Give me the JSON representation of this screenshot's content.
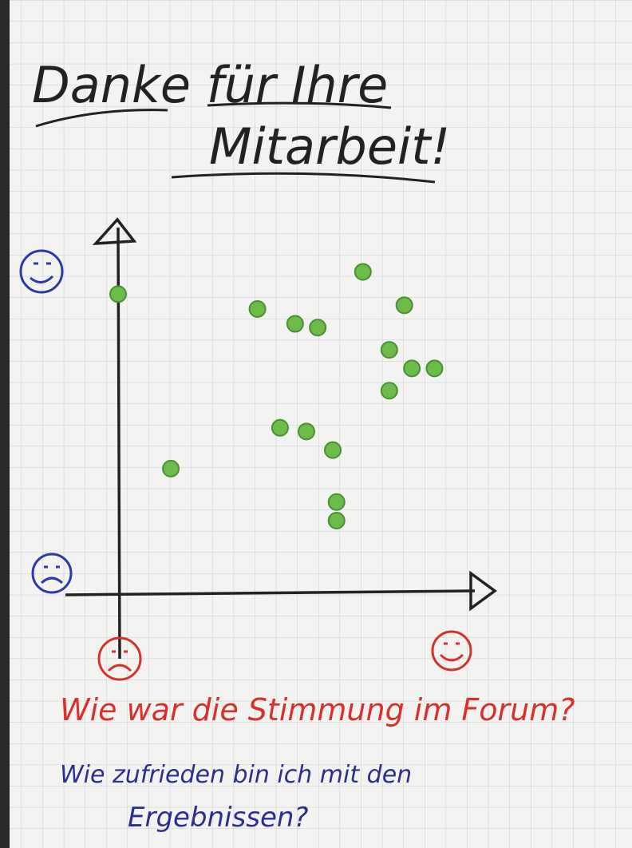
{
  "chart_data": {
    "type": "scatter",
    "title_lines": [
      "Danke für Ihre",
      "Mitarbeit!"
    ],
    "annotations": [
      "Wie war die Stimmung im Forum?",
      "Wie zufrieden bin ich mit den",
      "Ergebnissen?"
    ],
    "annotation_colors": [
      "#d9302c",
      "#2b2f8f",
      "#2b2f8f"
    ],
    "series": [
      {
        "color": "#6dbb4a",
        "x": [
          0.0,
          1.4,
          3.7,
          4.7,
          5.3,
          4.3,
          5.0,
          5.7,
          5.8,
          5.8,
          6.5,
          7.6,
          7.2,
          7.8,
          8.4,
          7.2
        ],
        "values": [
          8.1,
          3.4,
          7.7,
          7.3,
          7.2,
          4.5,
          4.4,
          3.9,
          2.5,
          2.0,
          8.7,
          7.8,
          6.6,
          6.1,
          6.1,
          5.5
        ]
      }
    ],
    "xlim": [
      0,
      10
    ],
    "ylim": [
      0,
      10
    ]
  }
}
